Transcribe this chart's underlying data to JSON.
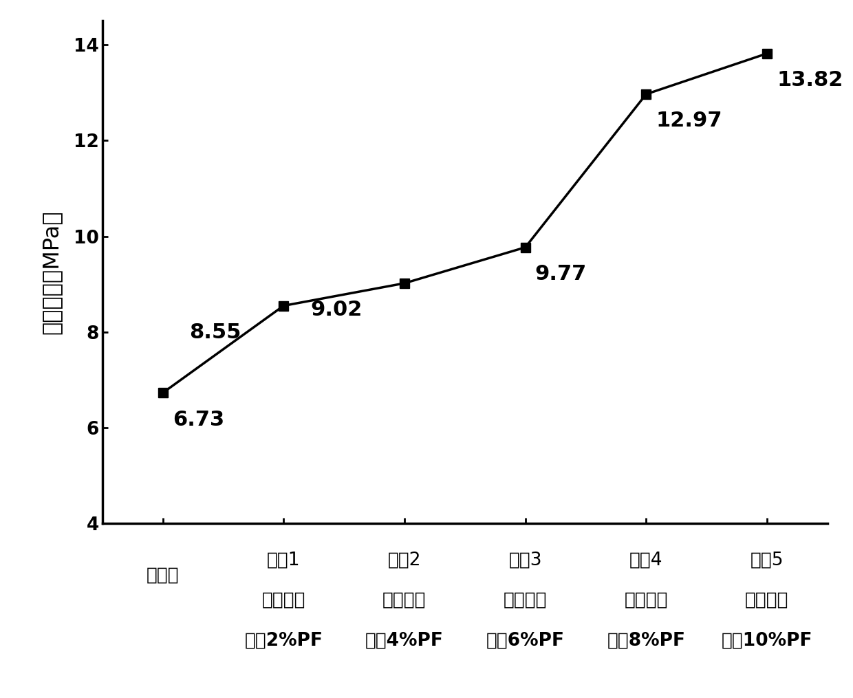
{
  "x_positions": [
    0,
    1,
    2,
    3,
    4,
    5
  ],
  "y_values": [
    6.73,
    8.55,
    9.02,
    9.77,
    12.97,
    13.82
  ],
  "x_labels_line1": [
    "原始样",
    "试样1",
    "试样2",
    "试样3",
    "试样4",
    "试样5"
  ],
  "x_labels_line2": [
    "",
    "添加质量",
    "添加质量",
    "添加质量",
    "添加质量",
    "添加质量"
  ],
  "x_labels_line3": [
    "",
    "占比2%PF",
    "占比4%PF",
    "占比6%PF",
    "占比8%PF",
    "占比10%PF"
  ],
  "annotations": [
    "6.73",
    "8.55",
    "9.02",
    "9.77",
    "12.97",
    "13.82"
  ],
  "annotation_offsets_x": [
    0.08,
    -0.35,
    -0.35,
    0.08,
    0.08,
    0.08
  ],
  "annotation_offsets_y": [
    -0.35,
    -0.35,
    -0.35,
    -0.35,
    -0.35,
    -0.35
  ],
  "ylabel": "抗弯强度（MPa）",
  "ylim": [
    4,
    14.5
  ],
  "yticks": [
    4,
    6,
    8,
    10,
    12,
    14
  ],
  "line_color": "#000000",
  "marker": "s",
  "marker_size": 10,
  "line_width": 2.5,
  "annotation_fontsize": 22,
  "tick_fontsize": 19,
  "ylabel_fontsize": 23,
  "background_color": "#ffffff"
}
